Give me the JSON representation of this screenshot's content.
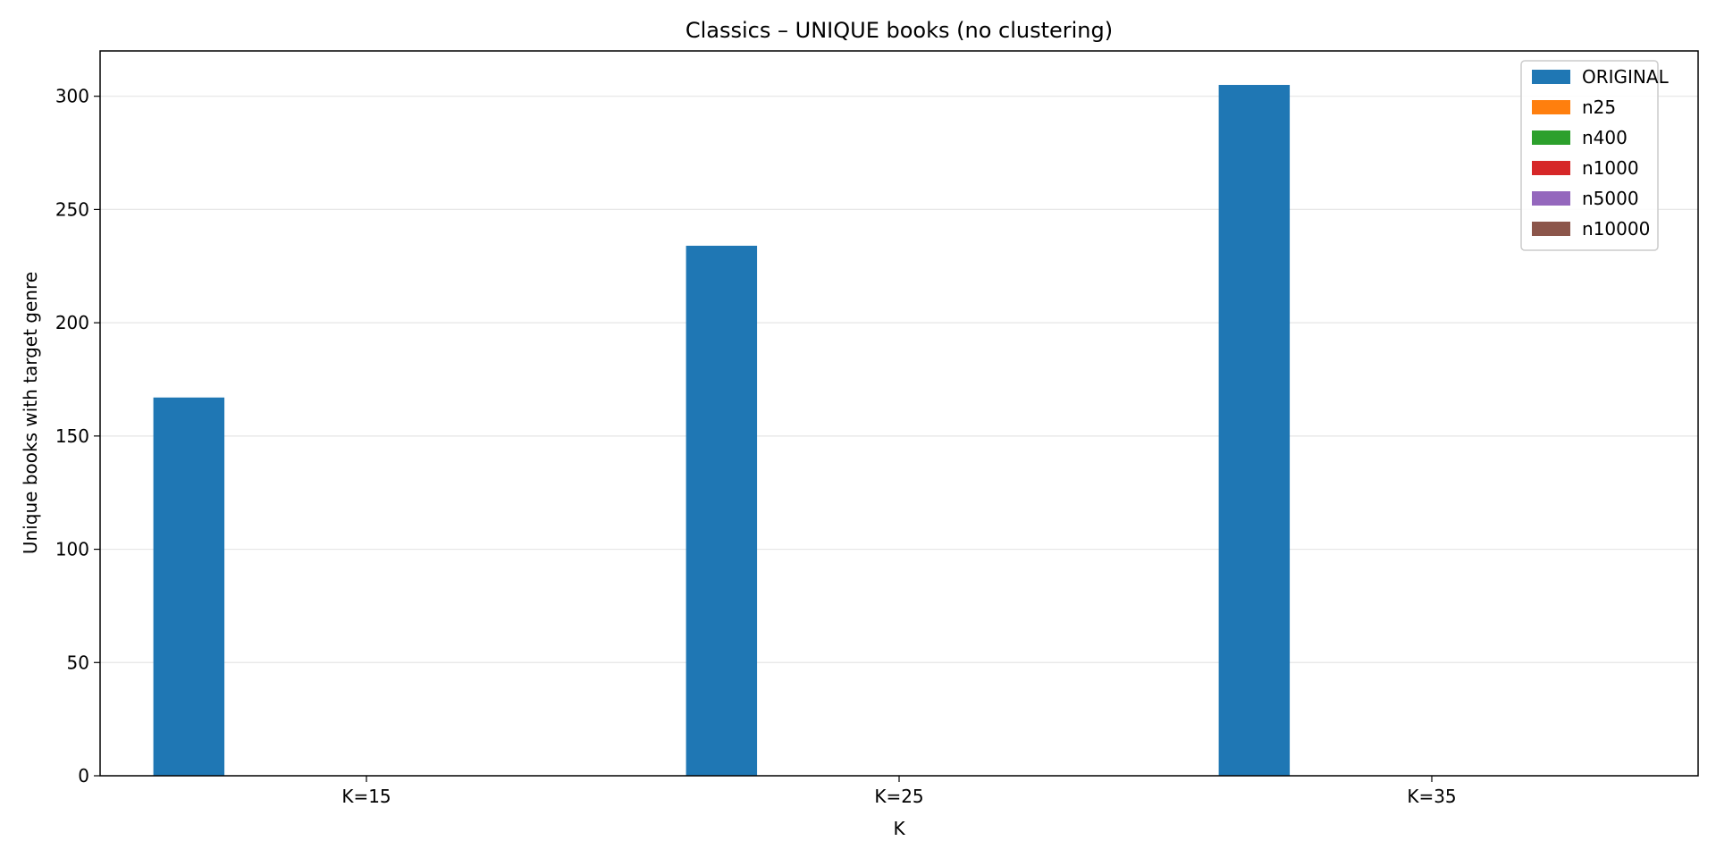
{
  "chart_data": {
    "type": "bar",
    "title": "Classics – UNIQUE books (no clustering)",
    "xlabel": "K",
    "ylabel": "Unique books with target genre",
    "categories": [
      "K=15",
      "K=25",
      "K=35"
    ],
    "ylim": [
      0,
      320
    ],
    "yticks": [
      0,
      50,
      100,
      150,
      200,
      250,
      300
    ],
    "grid": "horizontal",
    "legend_position": "top-right",
    "series": [
      {
        "name": "ORIGINAL",
        "color": "#1f77b4",
        "values": [
          167,
          234,
          305
        ]
      },
      {
        "name": "n25",
        "color": "#ff7f0e",
        "values": [
          0,
          0,
          0
        ]
      },
      {
        "name": "n400",
        "color": "#2ca02c",
        "values": [
          0,
          0,
          0
        ]
      },
      {
        "name": "n1000",
        "color": "#d62728",
        "values": [
          0,
          0,
          0
        ]
      },
      {
        "name": "n5000",
        "color": "#9467bd",
        "values": [
          0,
          0,
          0
        ]
      },
      {
        "name": "n10000",
        "color": "#8c564b",
        "values": [
          0,
          0,
          0
        ]
      }
    ]
  }
}
